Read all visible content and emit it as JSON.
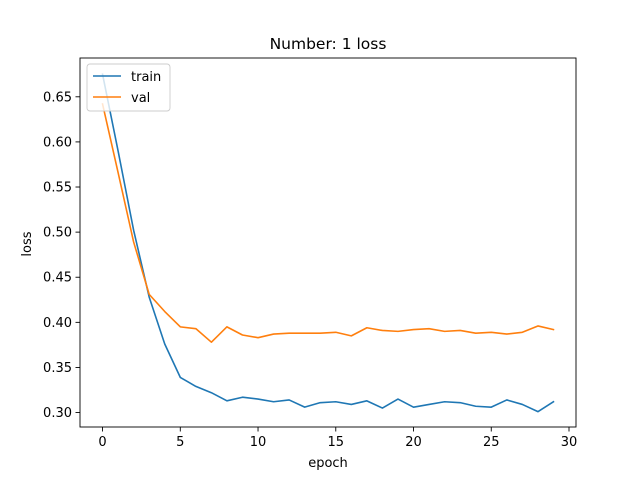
{
  "chart_data": {
    "type": "line",
    "title": "Number: 1 loss",
    "xlabel": "epoch",
    "ylabel": "loss",
    "xlim": [
      -1.45,
      30.45
    ],
    "ylim": [
      0.284,
      0.693
    ],
    "x_ticks": [
      0,
      5,
      10,
      15,
      20,
      25,
      30
    ],
    "y_ticks": [
      0.3,
      0.35,
      0.4,
      0.45,
      0.5,
      0.55,
      0.6,
      0.65
    ],
    "x_tick_labels": [
      "0",
      "5",
      "10",
      "15",
      "20",
      "25",
      "30"
    ],
    "y_tick_labels": [
      "0.30",
      "0.35",
      "0.40",
      "0.45",
      "0.50",
      "0.55",
      "0.60",
      "0.65"
    ],
    "grid": false,
    "legend_position": "top-left",
    "x": [
      0,
      1,
      2,
      3,
      4,
      5,
      6,
      7,
      8,
      9,
      10,
      11,
      12,
      13,
      14,
      15,
      16,
      17,
      18,
      19,
      20,
      21,
      22,
      23,
      24,
      25,
      26,
      27,
      28,
      29
    ],
    "series": [
      {
        "name": "train",
        "color": "#1f77b4",
        "values": [
          0.675,
          0.59,
          0.502,
          0.428,
          0.376,
          0.339,
          0.329,
          0.322,
          0.313,
          0.317,
          0.315,
          0.312,
          0.314,
          0.306,
          0.311,
          0.312,
          0.309,
          0.313,
          0.305,
          0.315,
          0.306,
          0.309,
          0.312,
          0.311,
          0.307,
          0.306,
          0.314,
          0.309,
          0.301,
          0.312
        ]
      },
      {
        "name": "val",
        "color": "#ff7f0e",
        "values": [
          0.642,
          0.566,
          0.489,
          0.431,
          0.412,
          0.395,
          0.393,
          0.378,
          0.395,
          0.386,
          0.383,
          0.387,
          0.388,
          0.388,
          0.388,
          0.389,
          0.385,
          0.394,
          0.391,
          0.39,
          0.392,
          0.393,
          0.39,
          0.391,
          0.388,
          0.389,
          0.387,
          0.389,
          0.396,
          0.392
        ]
      }
    ]
  }
}
